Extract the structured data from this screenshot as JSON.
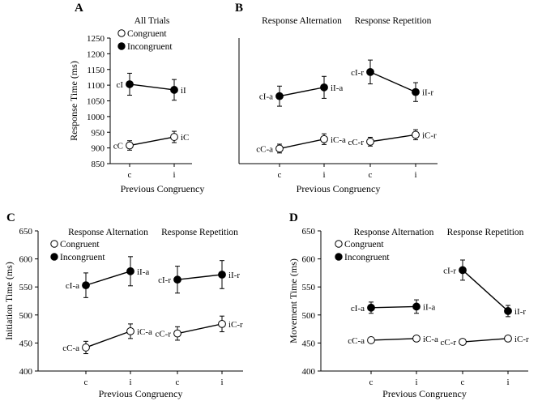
{
  "chart_data": [
    {
      "panel": "A",
      "type": "line",
      "ylabel": "Response Time (ms)",
      "xlabel": "Previous Congruency",
      "ylim": [
        850,
        1250
      ],
      "yticks": [
        850,
        900,
        950,
        1000,
        1050,
        1100,
        1150,
        1200,
        1250
      ],
      "groups": [
        {
          "title": "All Trials",
          "categories": [
            "c",
            "i"
          ]
        }
      ],
      "legend": {
        "entries": [
          {
            "marker": "open",
            "label": "Congruent"
          },
          {
            "marker": "filled",
            "label": "Incongruent"
          }
        ]
      },
      "series": [
        {
          "name": "Incongruent",
          "marker": "filled",
          "group": 0,
          "values": [
            1103,
            1085
          ],
          "errors": [
            35,
            33
          ],
          "labels": [
            "cI",
            "iI"
          ]
        },
        {
          "name": "Congruent",
          "marker": "open",
          "group": 0,
          "values": [
            908,
            935
          ],
          "errors": [
            15,
            18
          ],
          "labels": [
            "cC",
            "iC"
          ]
        }
      ]
    },
    {
      "panel": "B",
      "type": "line",
      "ylabel": "",
      "xlabel": "Previous Congruency",
      "ylim": [
        850,
        1250
      ],
      "groups": [
        {
          "title": "Response Alternation",
          "categories": [
            "c",
            "i"
          ]
        },
        {
          "title": "Response Repetition",
          "categories": [
            "c",
            "i"
          ]
        }
      ],
      "series": [
        {
          "name": "Incongruent alternation",
          "marker": "filled",
          "group": 0,
          "values": [
            1065,
            1093
          ],
          "errors": [
            32,
            35
          ],
          "labels": [
            "cI-a",
            "iI-a"
          ]
        },
        {
          "name": "Incongruent repetition",
          "marker": "filled",
          "group": 1,
          "values": [
            1142,
            1078
          ],
          "errors": [
            38,
            30
          ],
          "labels": [
            "cI-r",
            "iI-r"
          ]
        },
        {
          "name": "Congruent alternation",
          "marker": "open",
          "group": 0,
          "values": [
            898,
            928
          ],
          "errors": [
            14,
            17
          ],
          "labels": [
            "cC-a",
            "iC-a"
          ]
        },
        {
          "name": "Congruent repetition",
          "marker": "open",
          "group": 1,
          "values": [
            920,
            942
          ],
          "errors": [
            14,
            16
          ],
          "labels": [
            "cC-r",
            "iC-r"
          ]
        }
      ]
    },
    {
      "panel": "C",
      "type": "line",
      "ylabel": "Initiation Time (ms)",
      "xlabel": "Previous Congruency",
      "ylim": [
        400,
        650
      ],
      "yticks": [
        400,
        450,
        500,
        550,
        600,
        650
      ],
      "groups": [
        {
          "title": "Response Alternation",
          "categories": [
            "c",
            "i"
          ]
        },
        {
          "title": "Response Repetition",
          "categories": [
            "c",
            "i"
          ]
        }
      ],
      "legend": {
        "entries": [
          {
            "marker": "open",
            "label": "Congruent"
          },
          {
            "marker": "filled",
            "label": "Incongruent"
          }
        ]
      },
      "series": [
        {
          "name": "Incongruent alternation",
          "marker": "filled",
          "group": 0,
          "values": [
            553,
            578
          ],
          "errors": [
            22,
            26
          ],
          "labels": [
            "cI-a",
            "iI-a"
          ]
        },
        {
          "name": "Incongruent repetition",
          "marker": "filled",
          "group": 1,
          "values": [
            563,
            572
          ],
          "errors": [
            24,
            25
          ],
          "labels": [
            "cI-r",
            "iI-r"
          ]
        },
        {
          "name": "Congruent alternation",
          "marker": "open",
          "group": 0,
          "values": [
            442,
            471
          ],
          "errors": [
            11,
            13
          ],
          "labels": [
            "cC-a",
            "iC-a"
          ]
        },
        {
          "name": "Congruent repetition",
          "marker": "open",
          "group": 1,
          "values": [
            467,
            484
          ],
          "errors": [
            12,
            14
          ],
          "labels": [
            "cC-r",
            "iC-r"
          ]
        }
      ]
    },
    {
      "panel": "D",
      "type": "line",
      "ylabel": "Movement Time (ms)",
      "xlabel": "Previous Congruency",
      "ylim": [
        400,
        650
      ],
      "yticks": [
        400,
        450,
        500,
        550,
        600,
        650
      ],
      "groups": [
        {
          "title": "Response Alternation",
          "categories": [
            "c",
            "i"
          ]
        },
        {
          "title": "Response Repetition",
          "categories": [
            "c",
            "i"
          ]
        }
      ],
      "legend": {
        "entries": [
          {
            "marker": "open",
            "label": "Congruent"
          },
          {
            "marker": "filled",
            "label": "Incongruent"
          }
        ]
      },
      "series": [
        {
          "name": "Incongruent alternation",
          "marker": "filled",
          "group": 0,
          "values": [
            513,
            515
          ],
          "errors": [
            10,
            12
          ],
          "labels": [
            "cI-a",
            "iI-a"
          ]
        },
        {
          "name": "Incongruent repetition",
          "marker": "filled",
          "group": 1,
          "values": [
            580,
            507
          ],
          "errors": [
            18,
            10
          ],
          "labels": [
            "cI-r",
            "iI-r"
          ]
        },
        {
          "name": "Congruent alternation",
          "marker": "open",
          "group": 0,
          "values": [
            455,
            458
          ],
          "errors": [
            3,
            3
          ],
          "labels": [
            "cC-a",
            "iC-a"
          ]
        },
        {
          "name": "Congruent repetition",
          "marker": "open",
          "group": 1,
          "values": [
            452,
            458
          ],
          "errors": [
            3,
            3
          ],
          "labels": [
            "cC-r",
            "iC-r"
          ]
        }
      ]
    }
  ]
}
